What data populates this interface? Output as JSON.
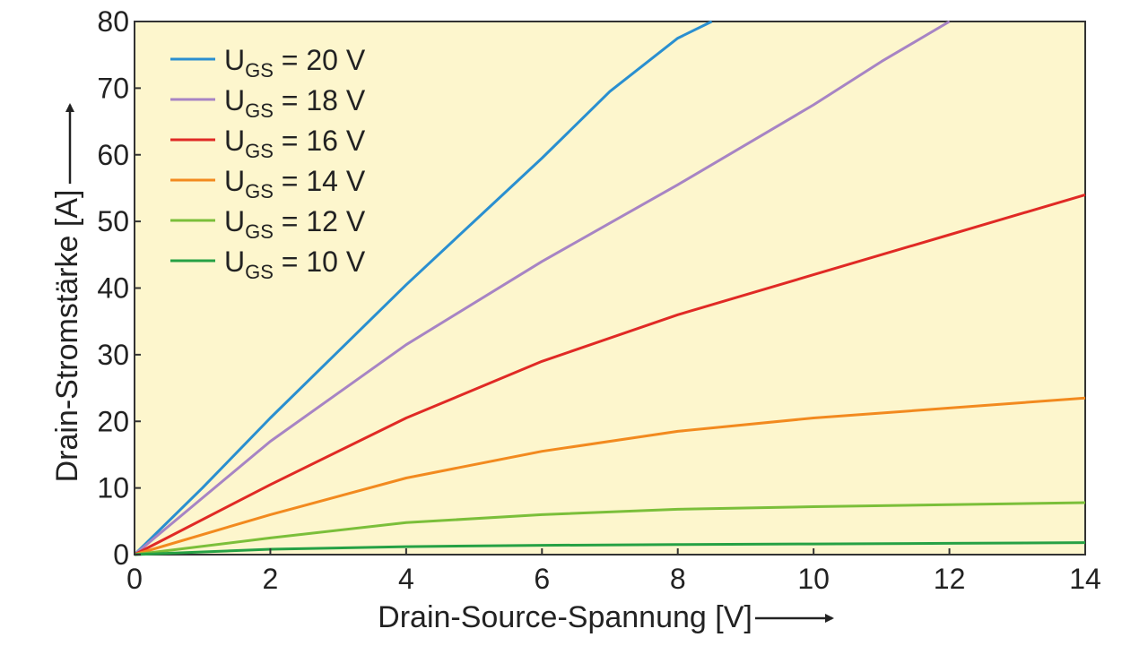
{
  "chart_data": {
    "type": "line",
    "title": "",
    "xlabel": "Drain-Source-Spannung [V]",
    "ylabel": "Drain-Stromstärke [A]",
    "xlim": [
      0,
      14
    ],
    "ylim": [
      0,
      80
    ],
    "xticks": [
      "0",
      "2",
      "4",
      "6",
      "8",
      "10",
      "12",
      "14"
    ],
    "yticks": [
      "0",
      "10",
      "20",
      "30",
      "40",
      "50",
      "60",
      "70",
      "80"
    ],
    "grid": false,
    "legend": "top-left",
    "background": "#fdf6cd",
    "series": [
      {
        "name_main": "U",
        "name_sub": "GS",
        "name_rest": " = 20 V",
        "color": "#2a8fd0",
        "points": [
          [
            0,
            0
          ],
          [
            1,
            10
          ],
          [
            2,
            20.5
          ],
          [
            3,
            30.5
          ],
          [
            4,
            40.5
          ],
          [
            5,
            50
          ],
          [
            6,
            59.5
          ],
          [
            7,
            69.5
          ],
          [
            8,
            77.5
          ],
          [
            8.5,
            80
          ]
        ]
      },
      {
        "name_main": "U",
        "name_sub": "GS",
        "name_rest": " = 18 V",
        "color": "#a784c4",
        "points": [
          [
            0,
            0
          ],
          [
            2,
            17
          ],
          [
            4,
            31.5
          ],
          [
            6,
            44
          ],
          [
            8,
            55.5
          ],
          [
            10,
            67.5
          ],
          [
            11,
            74
          ],
          [
            12,
            80
          ]
        ]
      },
      {
        "name_main": "U",
        "name_sub": "GS",
        "name_rest": " = 16 V",
        "color": "#e02a25",
        "points": [
          [
            0,
            0
          ],
          [
            2,
            10.5
          ],
          [
            4,
            20.5
          ],
          [
            6,
            29
          ],
          [
            8,
            36
          ],
          [
            10,
            42
          ],
          [
            12,
            48
          ],
          [
            14,
            54
          ]
        ]
      },
      {
        "name_main": "U",
        "name_sub": "GS",
        "name_rest": " = 14 V",
        "color": "#f28a1f",
        "points": [
          [
            0,
            0
          ],
          [
            2,
            6
          ],
          [
            4,
            11.5
          ],
          [
            6,
            15.5
          ],
          [
            8,
            18.5
          ],
          [
            10,
            20.5
          ],
          [
            12,
            22
          ],
          [
            14,
            23.5
          ]
        ]
      },
      {
        "name_main": "U",
        "name_sub": "GS",
        "name_rest": " = 12 V",
        "color": "#7bbf3a",
        "points": [
          [
            0,
            0
          ],
          [
            2,
            2.5
          ],
          [
            4,
            4.8
          ],
          [
            6,
            6
          ],
          [
            8,
            6.8
          ],
          [
            10,
            7.2
          ],
          [
            12,
            7.5
          ],
          [
            14,
            7.8
          ]
        ]
      },
      {
        "name_main": "U",
        "name_sub": "GS",
        "name_rest": " = 10 V",
        "color": "#26a145",
        "points": [
          [
            0,
            0
          ],
          [
            2,
            0.8
          ],
          [
            4,
            1.2
          ],
          [
            6,
            1.4
          ],
          [
            8,
            1.5
          ],
          [
            10,
            1.6
          ],
          [
            12,
            1.7
          ],
          [
            14,
            1.8
          ]
        ]
      }
    ]
  }
}
